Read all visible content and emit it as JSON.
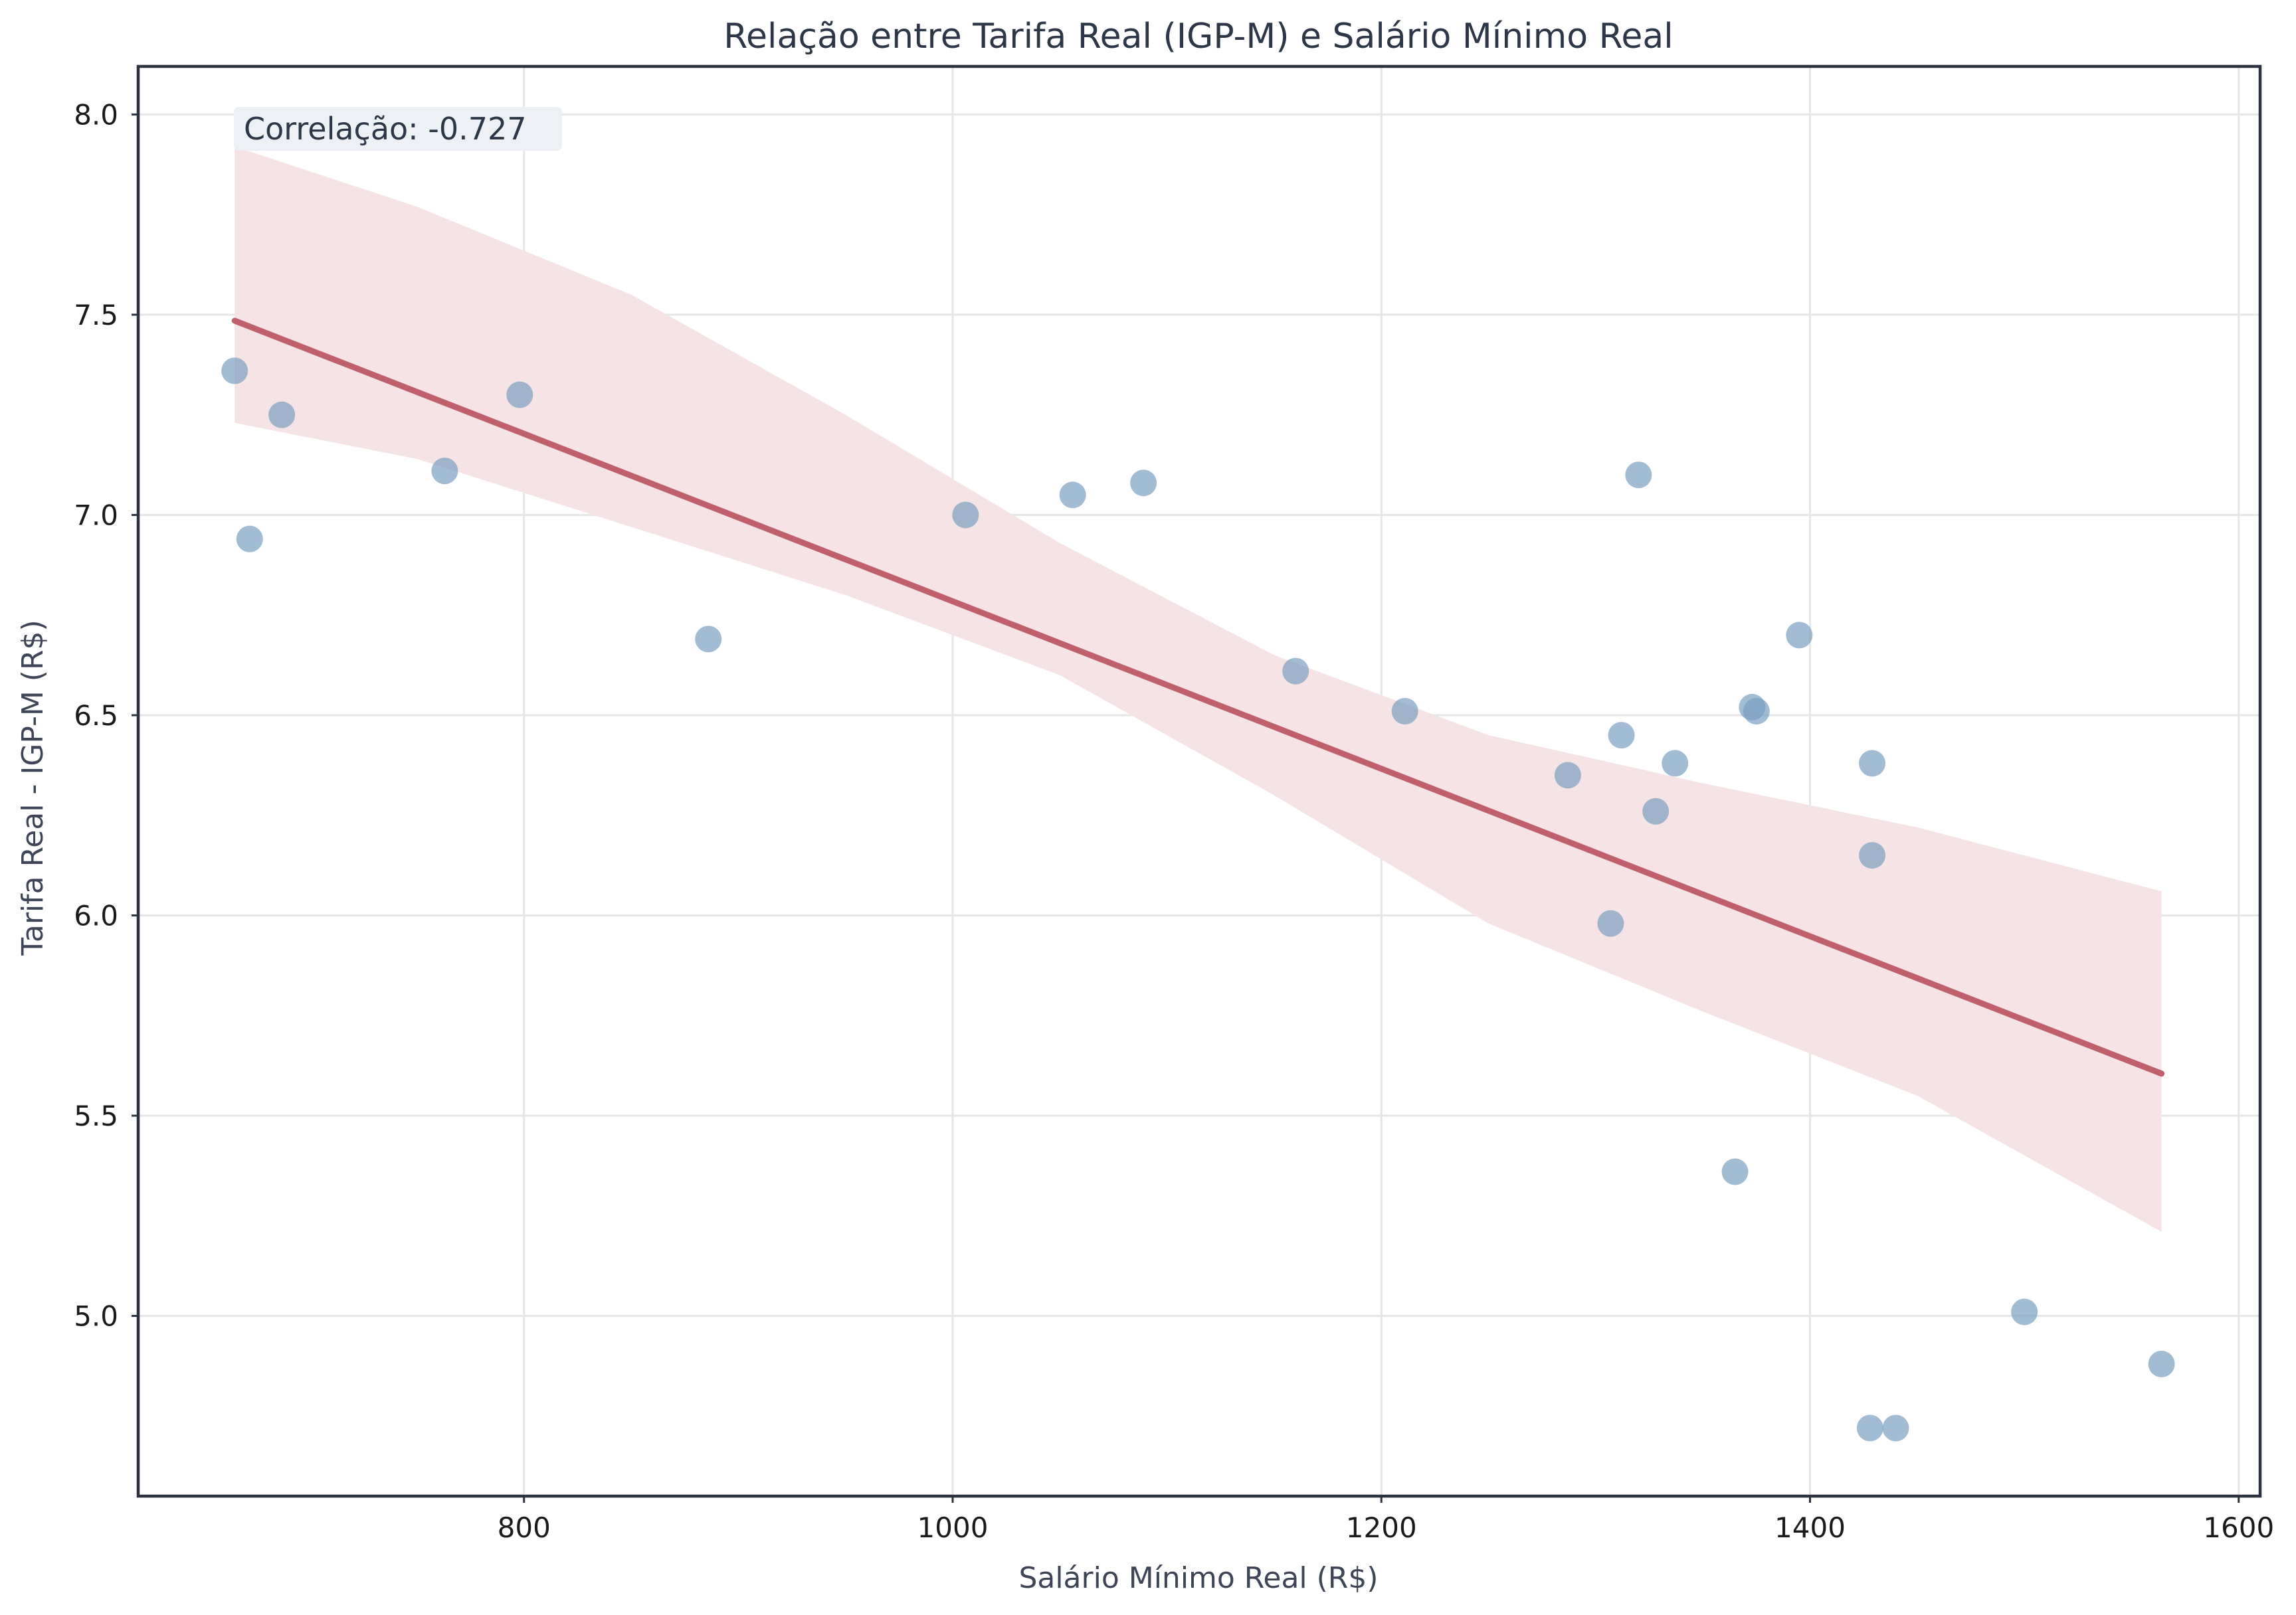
{
  "chart_data": {
    "type": "scatter",
    "title": "Relação entre Tarifa Real (IGP-M) e Salário Mínimo Real",
    "xlabel": "Salário Mínimo Real (R$)",
    "ylabel": "Tarifa Real - IGP-M (R$)",
    "xlim": [
      620,
      1610
    ],
    "ylim": [
      4.55,
      8.12
    ],
    "xticks": [
      800,
      1000,
      1200,
      1400,
      1600
    ],
    "yticks": [
      5.0,
      5.5,
      6.0,
      6.5,
      7.0,
      7.5,
      8.0
    ],
    "xtick_labels": [
      "800",
      "1000",
      "1200",
      "1400",
      "1600"
    ],
    "ytick_labels": [
      "5.0",
      "5.5",
      "6.0",
      "6.5",
      "7.0",
      "7.5",
      "8.0"
    ],
    "grid": true,
    "annotation": "Correlação: -0.727",
    "colors": {
      "points": "#7a9fc0",
      "regression_line": "#c0606c",
      "confidence_band": "#f5e3e5",
      "annotation_box": "#edf1f5"
    },
    "points": [
      {
        "x": 665,
        "y": 7.36
      },
      {
        "x": 672,
        "y": 6.94
      },
      {
        "x": 687,
        "y": 7.25
      },
      {
        "x": 763,
        "y": 7.11
      },
      {
        "x": 798,
        "y": 7.3
      },
      {
        "x": 886,
        "y": 6.69
      },
      {
        "x": 1006,
        "y": 7.0
      },
      {
        "x": 1056,
        "y": 7.05
      },
      {
        "x": 1089,
        "y": 7.08
      },
      {
        "x": 1160,
        "y": 6.61
      },
      {
        "x": 1211,
        "y": 6.51
      },
      {
        "x": 1287,
        "y": 6.35
      },
      {
        "x": 1307,
        "y": 5.98
      },
      {
        "x": 1312,
        "y": 6.45
      },
      {
        "x": 1320,
        "y": 7.1
      },
      {
        "x": 1328,
        "y": 6.26
      },
      {
        "x": 1337,
        "y": 6.38
      },
      {
        "x": 1365,
        "y": 5.36
      },
      {
        "x": 1373,
        "y": 6.52
      },
      {
        "x": 1375,
        "y": 6.51
      },
      {
        "x": 1395,
        "y": 6.7
      },
      {
        "x": 1428,
        "y": 4.72
      },
      {
        "x": 1429,
        "y": 6.38
      },
      {
        "x": 1429,
        "y": 6.15
      },
      {
        "x": 1440,
        "y": 4.72
      },
      {
        "x": 1500,
        "y": 5.01
      },
      {
        "x": 1564,
        "y": 4.88
      }
    ],
    "regression": {
      "x": [
        665,
        1564
      ],
      "y": [
        7.485,
        5.605
      ]
    },
    "confidence_band": [
      {
        "x": 665,
        "lo": 7.23,
        "hi": 7.92
      },
      {
        "x": 750,
        "lo": 7.14,
        "hi": 7.77
      },
      {
        "x": 850,
        "lo": 6.97,
        "hi": 7.55
      },
      {
        "x": 950,
        "lo": 6.8,
        "hi": 7.25
      },
      {
        "x": 1050,
        "lo": 6.6,
        "hi": 6.93
      },
      {
        "x": 1150,
        "lo": 6.3,
        "hi": 6.65
      },
      {
        "x": 1250,
        "lo": 5.98,
        "hi": 6.45
      },
      {
        "x": 1350,
        "lo": 5.76,
        "hi": 6.33
      },
      {
        "x": 1450,
        "lo": 5.55,
        "hi": 6.22
      },
      {
        "x": 1564,
        "lo": 5.21,
        "hi": 6.06
      }
    ]
  }
}
